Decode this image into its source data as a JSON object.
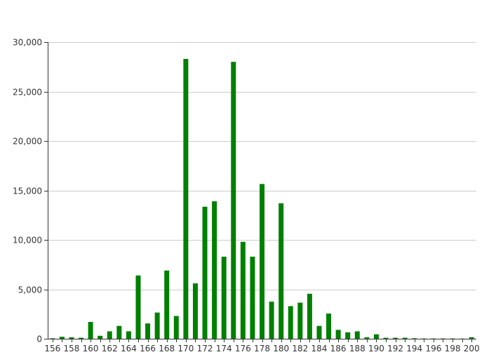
{
  "chart_data": {
    "type": "bar",
    "title": "",
    "xlabel": "",
    "ylabel": "",
    "x": [
      156,
      157,
      158,
      159,
      160,
      161,
      162,
      163,
      164,
      165,
      166,
      167,
      168,
      169,
      170,
      171,
      172,
      173,
      174,
      175,
      176,
      177,
      178,
      179,
      180,
      181,
      182,
      183,
      184,
      185,
      186,
      187,
      188,
      189,
      190,
      191,
      192,
      193,
      194,
      195,
      196,
      197,
      198,
      199,
      200
    ],
    "values": [
      50,
      200,
      150,
      100,
      1700,
      300,
      750,
      1300,
      750,
      6400,
      1550,
      2650,
      6900,
      2300,
      28300,
      5600,
      13350,
      13900,
      8300,
      28000,
      9800,
      8300,
      15650,
      3750,
      13700,
      3300,
      3650,
      4550,
      1300,
      2550,
      900,
      650,
      750,
      150,
      450,
      100,
      100,
      100,
      50,
      30,
      30,
      30,
      30,
      20,
      150
    ],
    "x_tick_labels": [
      "156",
      "158",
      "160",
      "162",
      "164",
      "166",
      "168",
      "170",
      "172",
      "174",
      "176",
      "178",
      "180",
      "182",
      "184",
      "186",
      "188",
      "190",
      "192",
      "194",
      "196",
      "198",
      "200"
    ],
    "y_tick_values": [
      0,
      5000,
      10000,
      15000,
      20000,
      25000,
      30000
    ],
    "y_tick_labels": [
      "0",
      "5,000",
      "10,000",
      "15,000",
      "20,000",
      "25,000",
      "30,000"
    ],
    "ylim": [
      0,
      30000
    ],
    "xlim": [
      156,
      200
    ],
    "grid": "horizontal",
    "legend": "none",
    "bar_color": "#008000",
    "grid_color": "#cccccc",
    "axis_color": "#333333"
  }
}
